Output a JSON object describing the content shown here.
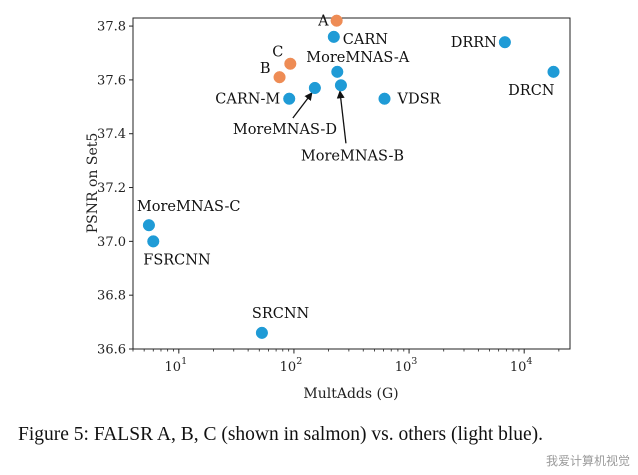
{
  "caption": "Figure 5: FALSR A, B, C (shown in salmon) vs. others (light blue).",
  "watermark": "我爱计算机视觉",
  "chart_data": {
    "type": "scatter",
    "title": "",
    "xlabel": "MultAdds (G)",
    "ylabel": "PSNR on Set5",
    "xscale": "log",
    "xlim": [
      4,
      25000
    ],
    "ylim": [
      36.6,
      37.83
    ],
    "xticks": [
      {
        "value": 10,
        "label": "10^1"
      },
      {
        "value": 100,
        "label": "10^2"
      },
      {
        "value": 1000,
        "label": "10^3"
      },
      {
        "value": 10000,
        "label": "10^4"
      }
    ],
    "yticks": [
      36.6,
      36.8,
      37.0,
      37.2,
      37.4,
      37.6,
      37.8
    ],
    "grid": false,
    "colors": {
      "falsr": "#ee8c55",
      "others": "#1f9bd6"
    },
    "series": [
      {
        "group": "falsr",
        "points": [
          {
            "label": "A",
            "x": 235,
            "y": 37.82
          },
          {
            "label": "B",
            "x": 75,
            "y": 37.61
          },
          {
            "label": "C",
            "x": 93,
            "y": 37.66
          }
        ]
      },
      {
        "group": "others",
        "points": [
          {
            "label": "CARN",
            "x": 222,
            "y": 37.76
          },
          {
            "label": "MoreMNAS-A",
            "x": 238,
            "y": 37.63
          },
          {
            "label": "MoreMNAS-B",
            "x": 256,
            "y": 37.58
          },
          {
            "label": "MoreMNAS-D",
            "x": 152,
            "y": 37.57
          },
          {
            "label": "CARN-M",
            "x": 91,
            "y": 37.53
          },
          {
            "label": "VDSR",
            "x": 612,
            "y": 37.53
          },
          {
            "label": "DRRN",
            "x": 6797,
            "y": 37.74
          },
          {
            "label": "DRCN",
            "x": 17974,
            "y": 37.63
          },
          {
            "label": "MoreMNAS-C",
            "x": 5.5,
            "y": 37.06
          },
          {
            "label": "FSRCNN",
            "x": 6.0,
            "y": 37.0
          },
          {
            "label": "SRCNN",
            "x": 52.7,
            "y": 36.66
          }
        ]
      }
    ],
    "annotations": [
      {
        "text": "MoreMNAS-D",
        "target": "MoreMNAS-D",
        "arrow": true
      },
      {
        "text": "MoreMNAS-B",
        "target": "MoreMNAS-B",
        "arrow": true
      }
    ]
  }
}
